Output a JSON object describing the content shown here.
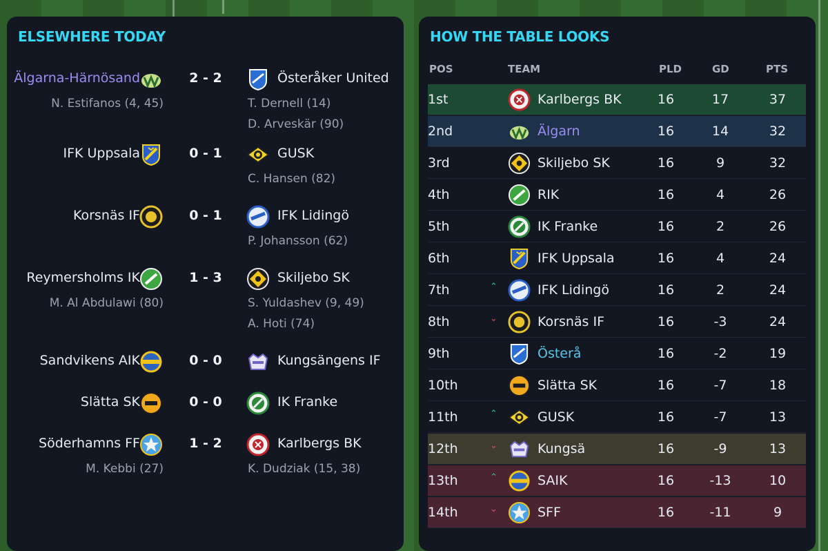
{
  "elsewhere": {
    "title": "ELSEWHERE TODAY",
    "fixtures": [
      {
        "home": "Älgarna-Härnösand",
        "home_badge": "algarna-badge",
        "score": "2 - 2",
        "away": "Österåker United",
        "away_badge": "osteraker-badge",
        "home_scorers": [
          "N. Estifanos (4, 45)"
        ],
        "away_scorers": [
          "T. Dernell (14)",
          "D. Arveskär (90)"
        ]
      },
      {
        "home": "IFK Uppsala",
        "home_badge": "ifk-uppsala-badge",
        "score": "0 - 1",
        "away": "GUSK",
        "away_badge": "gusk-badge",
        "home_scorers": [],
        "away_scorers": [
          "C. Hansen (82)"
        ]
      },
      {
        "home": "Korsnäs IF",
        "home_badge": "korsnas-badge",
        "score": "0 - 1",
        "away": "IFK Lidingö",
        "away_badge": "ifk-lidingo-badge",
        "home_scorers": [],
        "away_scorers": [
          "P. Johansson (62)"
        ]
      },
      {
        "home": "Reymersholms IK",
        "home_badge": "reymersholm-badge",
        "score": "1 - 3",
        "away": "Skiljebo SK",
        "away_badge": "skiljebo-badge",
        "home_scorers": [
          "M. Al Abdulawi (80)"
        ],
        "away_scorers": [
          "S. Yuldashev (9, 49)",
          "A. Hoti (74)"
        ]
      },
      {
        "home": "Sandvikens AIK",
        "home_badge": "sandviken-badge",
        "score": "0 - 0",
        "away": "Kungsängens IF",
        "away_badge": "kungsangen-badge",
        "home_scorers": [],
        "away_scorers": []
      },
      {
        "home": "Slätta SK",
        "home_badge": "slatta-badge",
        "score": "0 - 0",
        "away": "IK Franke",
        "away_badge": "franke-badge",
        "home_scorers": [],
        "away_scorers": []
      },
      {
        "home": "Söderhamns FF",
        "home_badge": "soderhamn-badge",
        "score": "1 - 2",
        "away": "Karlbergs BK",
        "away_badge": "karlberg-badge",
        "home_scorers": [
          "M. Kebbi (27)"
        ],
        "away_scorers": [
          "K. Dudziak (15, 38)"
        ]
      }
    ]
  },
  "table": {
    "title": "HOW THE TABLE LOOKS",
    "headers": {
      "pos": "POS",
      "team": "TEAM",
      "pld": "PLD",
      "gd": "GD",
      "pts": "PTS"
    },
    "rows": [
      {
        "pos": "1st",
        "move": "",
        "team": "Karlbergs BK",
        "badge": "karlberg-badge",
        "pld": "16",
        "gd": "17",
        "pts": "37",
        "zone": "champ"
      },
      {
        "pos": "2nd",
        "move": "",
        "team": "Älgarn",
        "badge": "algarna-badge",
        "pld": "16",
        "gd": "14",
        "pts": "32",
        "zone": "user"
      },
      {
        "pos": "3rd",
        "move": "",
        "team": "Skiljebo SK",
        "badge": "skiljebo-badge",
        "pld": "16",
        "gd": "9",
        "pts": "32",
        "zone": ""
      },
      {
        "pos": "4th",
        "move": "",
        "team": "RIK",
        "badge": "reymersholm-badge",
        "pld": "16",
        "gd": "4",
        "pts": "26",
        "zone": ""
      },
      {
        "pos": "5th",
        "move": "",
        "team": "IK Franke",
        "badge": "franke-badge",
        "pld": "16",
        "gd": "2",
        "pts": "26",
        "zone": ""
      },
      {
        "pos": "6th",
        "move": "",
        "team": "IFK Uppsala",
        "badge": "ifk-uppsala-badge",
        "pld": "16",
        "gd": "4",
        "pts": "24",
        "zone": ""
      },
      {
        "pos": "7th",
        "move": "up",
        "team": "IFK Lidingö",
        "badge": "ifk-lidingo-badge",
        "pld": "16",
        "gd": "2",
        "pts": "24",
        "zone": ""
      },
      {
        "pos": "8th",
        "move": "down",
        "team": "Korsnäs IF",
        "badge": "korsnas-badge",
        "pld": "16",
        "gd": "-3",
        "pts": "24",
        "zone": ""
      },
      {
        "pos": "9th",
        "move": "",
        "team": "Österå",
        "badge": "osteraker-badge",
        "pld": "16",
        "gd": "-2",
        "pts": "19",
        "zone": "",
        "rival": true
      },
      {
        "pos": "10th",
        "move": "",
        "team": "Slätta SK",
        "badge": "slatta-badge",
        "pld": "16",
        "gd": "-7",
        "pts": "18",
        "zone": ""
      },
      {
        "pos": "11th",
        "move": "up",
        "team": "GUSK",
        "badge": "gusk-badge",
        "pld": "16",
        "gd": "-7",
        "pts": "13",
        "zone": ""
      },
      {
        "pos": "12th",
        "move": "down",
        "team": "Kungsä",
        "badge": "kungsangen-badge",
        "pld": "16",
        "gd": "-9",
        "pts": "13",
        "zone": "playoff"
      },
      {
        "pos": "13th",
        "move": "up",
        "team": "SAIK",
        "badge": "sandviken-badge",
        "pld": "16",
        "gd": "-13",
        "pts": "10",
        "zone": "releg"
      },
      {
        "pos": "14th",
        "move": "down",
        "team": "SFF",
        "badge": "soderhamn-badge",
        "pld": "16",
        "gd": "-11",
        "pts": "9",
        "zone": "releg"
      }
    ]
  },
  "colors": {
    "accent": "#35d7f3",
    "user_team": "#9d8cf2",
    "panel": "#121722",
    "move_up": "#34c77b",
    "move_down": "#e84a5f"
  }
}
